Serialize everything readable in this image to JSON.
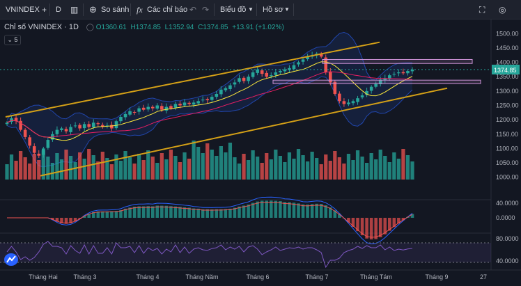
{
  "toolbar": {
    "symbol": "VNINDEX",
    "interval": "D",
    "compare_label": "So sánh",
    "indicators_label": "Các chỉ báo",
    "chart_type_label": "Biểu đồ",
    "profile_label": "Hồ sơ"
  },
  "legend": {
    "title": "Chỉ số VNINDEX · 1D",
    "open": "O1360.61",
    "high": "H1374.85",
    "low": "L1352.94",
    "close": "C1374.85",
    "change": "+13.91 (+1.02%)",
    "collapse": "5"
  },
  "price_label": "1374.85",
  "colors": {
    "background": "#131722",
    "toolbar": "#1e222d",
    "up": "#26a69a",
    "down": "#ef5350",
    "channel": "#d4a017",
    "zone": "#ce93d8",
    "bollinger": "#2962ff",
    "ma_fast": "#ffeb3b",
    "ma_slow": "#e91e63",
    "rsi": "#7e57c2"
  },
  "chart_data": {
    "type": "line",
    "symbol": "VNINDEX",
    "interval": "1D",
    "price_axis": {
      "ticks": [
        1500.0,
        1450.0,
        1400.0,
        1350.0,
        1300.0,
        1250.0,
        1200.0,
        1150.0,
        1100.0,
        1050.0,
        1000.0
      ],
      "ylim": [
        975,
        1525
      ]
    },
    "x_labels": [
      "Tháng Hai",
      "Tháng 3",
      "Tháng 4",
      "Tháng Năm",
      "Tháng 6",
      "Tháng 7",
      "Tháng Tám",
      "Tháng 9"
    ],
    "x_edge_label": "27",
    "series": [
      {
        "values": [
          1190,
          1205,
          1195,
          1165,
          1140,
          1110,
          1085,
          1075,
          1100,
          1130,
          1150,
          1165,
          1170,
          1160,
          1175,
          1180,
          1170,
          1185,
          1175,
          1190,
          1185,
          1175,
          1180,
          1170,
          1195,
          1210,
          1220,
          1230,
          1225,
          1240,
          1235,
          1245,
          1240,
          1250,
          1235,
          1245,
          1240,
          1255,
          1250,
          1260,
          1255,
          1260,
          1265,
          1270,
          1268,
          1280,
          1290,
          1305,
          1310,
          1320,
          1330,
          1345,
          1335,
          1350,
          1365,
          1375,
          1360,
          1350,
          1355,
          1365,
          1370,
          1375,
          1380,
          1390,
          1400,
          1410,
          1420,
          1425,
          1430,
          1420,
          1365,
          1330,
          1290,
          1265,
          1255,
          1260,
          1265,
          1275,
          1285,
          1300,
          1315,
          1325,
          1340,
          1345,
          1355,
          1360,
          1365,
          1362,
          1370,
          1374.85
        ]
      }
    ],
    "annotations": {
      "channel_upper": {
        "start": 1210,
        "end": 1470
      },
      "channel_lower": {
        "start": 1005,
        "end": 1310
      },
      "resistance_zones": [
        [
          1396,
          1410
        ],
        [
          1326,
          1338
        ]
      ]
    },
    "macd": {
      "ticks": [
        "40.0000",
        "0.0000"
      ]
    },
    "rsi": {
      "ticks": [
        "80.0000",
        "40.0000"
      ]
    }
  }
}
